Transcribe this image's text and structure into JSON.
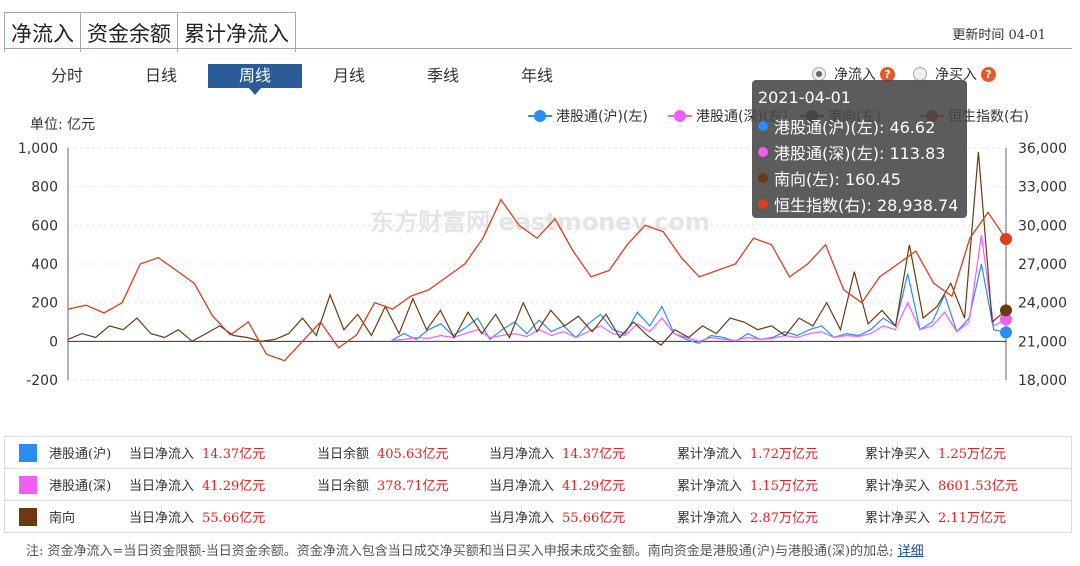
{
  "top_tabs": [
    {
      "label": "净流入"
    },
    {
      "label": "资金余额"
    },
    {
      "label": "累计净流入"
    }
  ],
  "update_time": "更新时间 04-01",
  "period_tabs": [
    {
      "label": "分时",
      "active": false
    },
    {
      "label": "日线",
      "active": false
    },
    {
      "label": "周线",
      "active": true
    },
    {
      "label": "月线",
      "active": false
    },
    {
      "label": "季线",
      "active": false
    },
    {
      "label": "年线",
      "active": false
    }
  ],
  "radios": [
    {
      "label": "净流入",
      "checked": true
    },
    {
      "label": "净买入",
      "checked": false
    }
  ],
  "help_mark": "?",
  "unit_label": "单位: 亿元",
  "watermark": "东方财富网 eastmoney.com",
  "chart_data": {
    "type": "line",
    "legend_position": "top-right",
    "grid": true,
    "y_left": {
      "min": -200,
      "max": 1000,
      "ticks": [
        "-200",
        "0",
        "200",
        "400",
        "600",
        "800",
        "1,000"
      ]
    },
    "y_right": {
      "min": 18000,
      "max": 36000,
      "ticks": [
        "18,000",
        "21,000",
        "24,000",
        "27,000",
        "30,000",
        "33,000",
        "36,000"
      ]
    },
    "series": [
      {
        "name": "港股通(沪)(左)",
        "axis": "left",
        "color": "#2a8ef0",
        "start": 0.345,
        "values": [
          5,
          40,
          10,
          60,
          90,
          30,
          70,
          120,
          10,
          60,
          100,
          40,
          110,
          50,
          80,
          20,
          90,
          140,
          60,
          40,
          150,
          80,
          180,
          40,
          10,
          -10,
          30,
          20,
          0,
          40,
          10,
          20,
          50,
          30,
          60,
          80,
          20,
          40,
          30,
          60,
          120,
          80,
          350,
          60,
          100,
          240,
          50,
          120,
          400,
          60,
          46.62
        ]
      },
      {
        "name": "港股通(深)(左)",
        "axis": "left",
        "color": "#f060f0",
        "start": 0.345,
        "values": [
          5,
          10,
          20,
          15,
          30,
          20,
          40,
          60,
          20,
          30,
          40,
          25,
          60,
          30,
          50,
          20,
          50,
          80,
          40,
          30,
          90,
          50,
          120,
          40,
          20,
          0,
          20,
          10,
          5,
          20,
          10,
          15,
          30,
          20,
          40,
          50,
          20,
          30,
          25,
          40,
          80,
          60,
          200,
          60,
          80,
          150,
          50,
          100,
          550,
          80,
          113.83
        ]
      },
      {
        "name": "南向(左)",
        "axis": "left",
        "color": "#6b3a10",
        "start": 0.0,
        "values": [
          10,
          40,
          20,
          80,
          60,
          120,
          40,
          20,
          60,
          0,
          40,
          80,
          30,
          20,
          0,
          10,
          40,
          120,
          30,
          240,
          60,
          140,
          30,
          180,
          40,
          220,
          60,
          160,
          20,
          150,
          40,
          140,
          20,
          200,
          50,
          160,
          80,
          130,
          50,
          140,
          20,
          100,
          30,
          -20,
          60,
          20,
          80,
          40,
          120,
          100,
          60,
          80,
          30,
          120,
          80,
          200,
          60,
          360,
          90,
          160,
          80,
          500,
          120,
          180,
          300,
          120,
          980,
          100,
          160.45
        ]
      },
      {
        "name": "恒生指数(右)",
        "axis": "right",
        "color": "#d84020",
        "start": 0.0,
        "values": [
          23500,
          23800,
          23200,
          24000,
          27000,
          27500,
          26500,
          25500,
          23000,
          21500,
          22500,
          20000,
          19500,
          21000,
          22500,
          20500,
          21500,
          24000,
          23500,
          24500,
          25000,
          26000,
          27000,
          29000,
          32000,
          30000,
          29000,
          30500,
          28000,
          26000,
          26500,
          28500,
          30000,
          29500,
          27500,
          26000,
          26500,
          27000,
          29000,
          28500,
          26000,
          27000,
          28500,
          25000,
          24000,
          26000,
          27000,
          28000,
          25500,
          24500,
          29000,
          31000,
          28938.74
        ]
      }
    ],
    "tooltip": {
      "date": "2021-04-01",
      "rows": [
        {
          "label": "港股通(沪)(左): 46.62",
          "color": "#2a8ef0"
        },
        {
          "label": "港股通(深)(左): 113.83",
          "color": "#f060f0"
        },
        {
          "label": "南向(左): 160.45",
          "color": "#6b3a10"
        },
        {
          "label": "恒生指数(右): 28,938.74",
          "color": "#d84020"
        }
      ]
    }
  },
  "table": [
    {
      "name": "港股通(沪)",
      "color": "#2a8ef0",
      "cells": [
        {
          "label": "当日净流入",
          "value": "14.37亿元"
        },
        {
          "label": "当日余额",
          "value": "405.63亿元"
        },
        {
          "label": "当月净流入",
          "value": "14.37亿元"
        },
        {
          "label": "累计净流入",
          "value": "1.72万亿元"
        },
        {
          "label": "累计净买入",
          "value": "1.25万亿元"
        }
      ]
    },
    {
      "name": "港股通(深)",
      "color": "#f060f0",
      "cells": [
        {
          "label": "当日净流入",
          "value": "41.29亿元"
        },
        {
          "label": "当日余额",
          "value": "378.71亿元"
        },
        {
          "label": "当月净流入",
          "value": "41.29亿元"
        },
        {
          "label": "累计净流入",
          "value": "1.15万亿元"
        },
        {
          "label": "累计净买入",
          "value": "8601.53亿元"
        }
      ]
    },
    {
      "name": "南向",
      "color": "#6b3a10",
      "cells": [
        {
          "label": "当日净流入",
          "value": "55.66亿元"
        },
        {
          "label": "",
          "value": ""
        },
        {
          "label": "当月净流入",
          "value": "55.66亿元"
        },
        {
          "label": "累计净流入",
          "value": "2.87万亿元"
        },
        {
          "label": "累计净买入",
          "value": "2.11万亿元"
        }
      ]
    }
  ],
  "note": {
    "text": "注: 资金净流入=当日资金限额-当日资金余额。资金净流入包含当日成交净买额和当日买入申报未成交金额。南向资金是港股通(沪)与港股通(深)的加总;",
    "link": "详细"
  }
}
